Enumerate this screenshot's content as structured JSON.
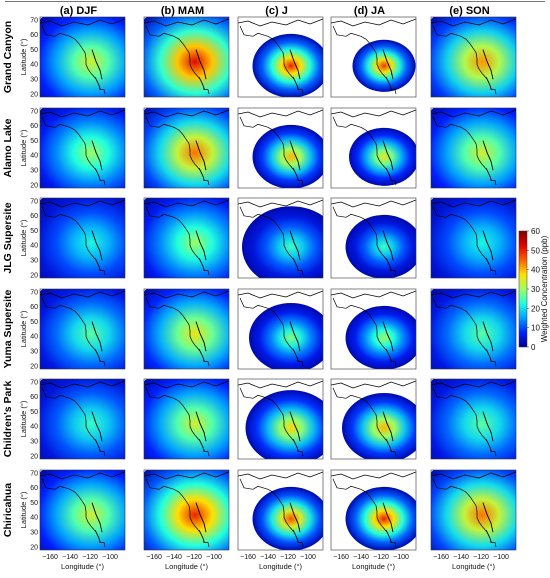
{
  "figure": {
    "column_titles": [
      "(a) DJF",
      "(b) MAM",
      "(c) J",
      "(d) JA",
      "(e) SON"
    ],
    "row_titles": [
      "Grand Canyon",
      "Alamo Lake",
      "JLG Supersite",
      "Yuma Supersite",
      "Children's Park",
      "Chiricahua"
    ],
    "axes": {
      "ylabel": "Latitude (°)",
      "xlabel": "Longitude (°)",
      "yticks": [
        "20",
        "30",
        "40",
        "50",
        "60",
        "70"
      ],
      "xticks": [
        "−160",
        "−140",
        "−120",
        "−100"
      ]
    },
    "colorbar": {
      "label": "Weighted Concentration (ppb)",
      "ticks": [
        "0",
        "10",
        "20",
        "30",
        "40",
        "50",
        "60"
      ],
      "range": [
        0,
        60
      ],
      "colors": [
        "#00008f",
        "#0020ff",
        "#00a0ff",
        "#20ffdf",
        "#9fff60",
        "#ffe000",
        "#ff6000",
        "#df0000",
        "#800000"
      ]
    }
  },
  "chart_data": {
    "type": "heatmap",
    "rows": [
      "Grand Canyon",
      "Alamo Lake",
      "JLG Supersite",
      "Yuma Supersite",
      "Children's Park",
      "Chiricahua"
    ],
    "columns": [
      "(a) DJF",
      "(b) MAM",
      "(c) J",
      "(d) JA",
      "(e) SON"
    ],
    "peak_concentration_ppb": [
      [
        34,
        52,
        50,
        48,
        42
      ],
      [
        30,
        44,
        40,
        36,
        34
      ],
      [
        22,
        30,
        24,
        24,
        22
      ],
      [
        26,
        36,
        28,
        30,
        26
      ],
      [
        24,
        34,
        38,
        40,
        26
      ],
      [
        34,
        50,
        46,
        50,
        44
      ]
    ],
    "plume_extent": [
      [
        1.0,
        1.0,
        0.55,
        0.45,
        1.0
      ],
      [
        1.0,
        1.0,
        0.55,
        0.5,
        1.0
      ],
      [
        1.0,
        1.0,
        0.7,
        0.55,
        1.0
      ],
      [
        1.0,
        1.0,
        0.6,
        0.55,
        1.0
      ],
      [
        1.0,
        1.0,
        0.65,
        0.6,
        0.95
      ],
      [
        1.0,
        1.0,
        0.55,
        0.55,
        0.95
      ]
    ],
    "colorbar_range": [
      0,
      60
    ]
  }
}
